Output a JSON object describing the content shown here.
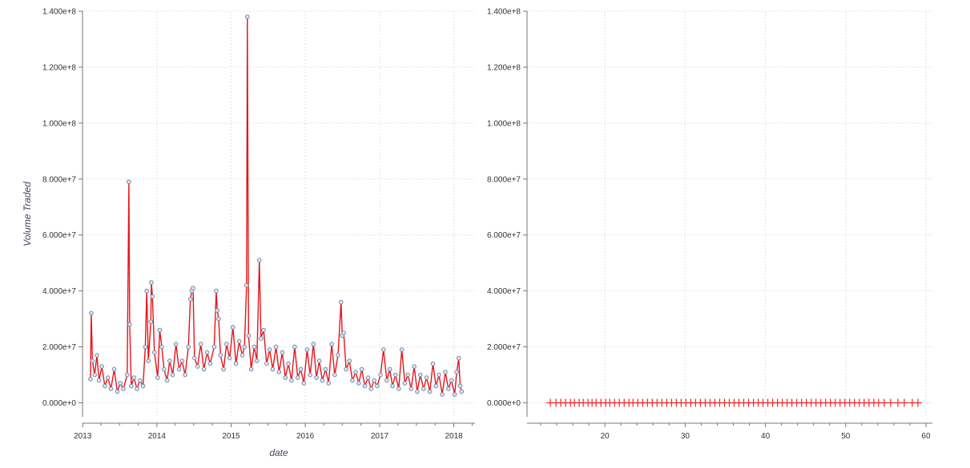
{
  "colors": {
    "line": "#e8141a",
    "marker_fill": "#e0e8f4",
    "marker_stroke": "#6f8aa8",
    "grid": "#e4e4e4",
    "axis": "#777777",
    "cross": "#f02525"
  },
  "chart_data": [
    {
      "type": "line",
      "title": "",
      "xlabel": "date",
      "ylabel": "Volume Traded",
      "x_axis_type": "datetime",
      "xlim": [
        "2012-12-31",
        "2018-04-15"
      ],
      "ylim": [
        -5000000.0,
        140000000.0
      ],
      "grid": true,
      "x_ticks": [
        "2013",
        "2014",
        "2015",
        "2016",
        "2017",
        "2018"
      ],
      "y_ticks": [
        "0.000e+0",
        "2.000e+7",
        "4.000e+7",
        "6.000e+7",
        "8.000e+7",
        "1.000e+8",
        "1.200e+8",
        "1.400e+8"
      ],
      "y_tick_values": [
        0,
        20000000,
        40000000,
        60000000,
        80000000,
        100000000,
        120000000,
        140000000
      ],
      "markers": "circle",
      "series": [
        {
          "points": [
            [
              "2013-02-08",
              8500000
            ],
            [
              "2013-02-12",
              32000000
            ],
            [
              "2013-02-18",
              15000000
            ],
            [
              "2013-03-01",
              10000000
            ],
            [
              "2013-03-12",
              17000000
            ],
            [
              "2013-03-22",
              8000000
            ],
            [
              "2013-04-05",
              13000000
            ],
            [
              "2013-04-20",
              6000000
            ],
            [
              "2013-05-05",
              9000000
            ],
            [
              "2013-05-20",
              5000000
            ],
            [
              "2013-06-05",
              12000000
            ],
            [
              "2013-06-20",
              4000000
            ],
            [
              "2013-07-05",
              7000000
            ],
            [
              "2013-07-20",
              5000000
            ],
            [
              "2013-08-08",
              10000000
            ],
            [
              "2013-08-16",
              79000000
            ],
            [
              "2013-08-20",
              28000000
            ],
            [
              "2013-08-28",
              6000000
            ],
            [
              "2013-09-10",
              9000000
            ],
            [
              "2013-09-25",
              5000000
            ],
            [
              "2013-10-10",
              8000000
            ],
            [
              "2013-10-25",
              6000000
            ],
            [
              "2013-11-05",
              20000000
            ],
            [
              "2013-11-12",
              40000000
            ],
            [
              "2013-11-20",
              15000000
            ],
            [
              "2013-12-02",
              29000000
            ],
            [
              "2013-12-05",
              43000000
            ],
            [
              "2013-12-10",
              38000000
            ],
            [
              "2013-12-20",
              18000000
            ],
            [
              "2014-01-05",
              9000000
            ],
            [
              "2014-01-15",
              26000000
            ],
            [
              "2014-01-25",
              20000000
            ],
            [
              "2014-02-05",
              12000000
            ],
            [
              "2014-02-20",
              8000000
            ],
            [
              "2014-03-05",
              15000000
            ],
            [
              "2014-03-20",
              10000000
            ],
            [
              "2014-04-05",
              21000000
            ],
            [
              "2014-04-20",
              12000000
            ],
            [
              "2014-05-05",
              15000000
            ],
            [
              "2014-05-20",
              10000000
            ],
            [
              "2014-06-05",
              20000000
            ],
            [
              "2014-06-15",
              37000000
            ],
            [
              "2014-06-22",
              40000000
            ],
            [
              "2014-06-28",
              41000000
            ],
            [
              "2014-07-05",
              16000000
            ],
            [
              "2014-07-20",
              13000000
            ],
            [
              "2014-08-05",
              21000000
            ],
            [
              "2014-08-20",
              12000000
            ],
            [
              "2014-09-05",
              18000000
            ],
            [
              "2014-09-20",
              14000000
            ],
            [
              "2014-10-10",
              20000000
            ],
            [
              "2014-10-20",
              40000000
            ],
            [
              "2014-10-25",
              33000000
            ],
            [
              "2014-11-01",
              30000000
            ],
            [
              "2014-11-10",
              17000000
            ],
            [
              "2014-11-25",
              12000000
            ],
            [
              "2014-12-10",
              21000000
            ],
            [
              "2014-12-25",
              16000000
            ],
            [
              "2015-01-10",
              27000000
            ],
            [
              "2015-01-25",
              14000000
            ],
            [
              "2015-02-10",
              22000000
            ],
            [
              "2015-02-25",
              17000000
            ],
            [
              "2015-03-08",
              20000000
            ],
            [
              "2015-03-18",
              42000000
            ],
            [
              "2015-03-22",
              138000000
            ],
            [
              "2015-03-28",
              24000000
            ],
            [
              "2015-04-10",
              12000000
            ],
            [
              "2015-04-25",
              20000000
            ],
            [
              "2015-05-08",
              15000000
            ],
            [
              "2015-05-20",
              51000000
            ],
            [
              "2015-05-28",
              23000000
            ],
            [
              "2015-06-10",
              26000000
            ],
            [
              "2015-06-25",
              14000000
            ],
            [
              "2015-07-10",
              19000000
            ],
            [
              "2015-07-25",
              12000000
            ],
            [
              "2015-08-10",
              20000000
            ],
            [
              "2015-08-25",
              11000000
            ],
            [
              "2015-09-10",
              18000000
            ],
            [
              "2015-09-25",
              9000000
            ],
            [
              "2015-10-10",
              14000000
            ],
            [
              "2015-10-25",
              8000000
            ],
            [
              "2015-11-10",
              20000000
            ],
            [
              "2015-11-25",
              9000000
            ],
            [
              "2015-12-10",
              12000000
            ],
            [
              "2015-12-25",
              7000000
            ],
            [
              "2016-01-10",
              19000000
            ],
            [
              "2016-01-25",
              10000000
            ],
            [
              "2016-02-10",
              21000000
            ],
            [
              "2016-02-25",
              9000000
            ],
            [
              "2016-03-10",
              15000000
            ],
            [
              "2016-03-25",
              8000000
            ],
            [
              "2016-04-10",
              12000000
            ],
            [
              "2016-04-25",
              7000000
            ],
            [
              "2016-05-10",
              21000000
            ],
            [
              "2016-05-25",
              10000000
            ],
            [
              "2016-06-10",
              17000000
            ],
            [
              "2016-06-25",
              36000000
            ],
            [
              "2016-07-01",
              24000000
            ],
            [
              "2016-07-08",
              25000000
            ],
            [
              "2016-07-20",
              12000000
            ],
            [
              "2016-08-05",
              15000000
            ],
            [
              "2016-08-20",
              8000000
            ],
            [
              "2016-09-05",
              11000000
            ],
            [
              "2016-09-20",
              7000000
            ],
            [
              "2016-10-05",
              12000000
            ],
            [
              "2016-10-20",
              6000000
            ],
            [
              "2016-11-05",
              9000000
            ],
            [
              "2016-11-20",
              5000000
            ],
            [
              "2016-12-05",
              8000000
            ],
            [
              "2016-12-20",
              6000000
            ],
            [
              "2017-01-05",
              10000000
            ],
            [
              "2017-01-20",
              19000000
            ],
            [
              "2017-02-05",
              8000000
            ],
            [
              "2017-02-20",
              12000000
            ],
            [
              "2017-03-05",
              6000000
            ],
            [
              "2017-03-20",
              10000000
            ],
            [
              "2017-04-05",
              5000000
            ],
            [
              "2017-04-20",
              19000000
            ],
            [
              "2017-05-05",
              7000000
            ],
            [
              "2017-05-20",
              10000000
            ],
            [
              "2017-06-05",
              5000000
            ],
            [
              "2017-06-20",
              13000000
            ],
            [
              "2017-07-05",
              4000000
            ],
            [
              "2017-07-20",
              10000000
            ],
            [
              "2017-08-05",
              5000000
            ],
            [
              "2017-08-20",
              9000000
            ],
            [
              "2017-09-05",
              4000000
            ],
            [
              "2017-09-20",
              14000000
            ],
            [
              "2017-10-05",
              6000000
            ],
            [
              "2017-10-20",
              10000000
            ],
            [
              "2017-11-05",
              3000000
            ],
            [
              "2017-11-20",
              11000000
            ],
            [
              "2017-12-05",
              5000000
            ],
            [
              "2017-12-20",
              8000000
            ],
            [
              "2018-01-05",
              3000000
            ],
            [
              "2018-01-15",
              11000000
            ],
            [
              "2018-01-25",
              16000000
            ],
            [
              "2018-02-01",
              6000000
            ],
            [
              "2018-02-08",
              4000000
            ]
          ]
        }
      ]
    },
    {
      "type": "scatter",
      "title": "",
      "xlabel": "",
      "ylabel": "",
      "xlim": [
        10.3,
        60.8
      ],
      "ylim": [
        -5000000.0,
        140000000.0
      ],
      "grid": true,
      "x_ticks": [
        "20",
        "30",
        "40",
        "50",
        "60"
      ],
      "x_tick_values": [
        20,
        30,
        40,
        50,
        60
      ],
      "y_ticks": [
        "0.000e+0",
        "2.000e+7",
        "4.000e+7",
        "6.000e+7",
        "8.000e+7",
        "1.000e+8",
        "1.200e+8",
        "1.400e+8"
      ],
      "y_tick_values": [
        0,
        20000000,
        40000000,
        60000000,
        80000000,
        100000000,
        120000000,
        140000000
      ],
      "markers": "cross",
      "series": [
        {
          "y": 0,
          "x": [
            13.2,
            13.9,
            14.5,
            15.1,
            15.7,
            16.2,
            16.8,
            17.3,
            17.9,
            18.4,
            18.9,
            19.5,
            20.1,
            20.6,
            21.2,
            21.8,
            22.4,
            23.0,
            23.5,
            24.1,
            24.7,
            25.3,
            25.9,
            26.5,
            27.1,
            27.7,
            28.3,
            28.9,
            29.5,
            30.1,
            30.7,
            31.3,
            31.9,
            32.5,
            33.1,
            33.7,
            34.3,
            34.9,
            35.5,
            36.1,
            36.7,
            37.3,
            37.9,
            38.5,
            39.1,
            39.7,
            40.3,
            40.9,
            41.5,
            42.1,
            42.7,
            43.3,
            43.9,
            44.5,
            45.1,
            45.7,
            46.3,
            46.9,
            47.5,
            48.1,
            48.7,
            49.3,
            49.9,
            50.5,
            51.1,
            51.7,
            52.3,
            52.9,
            53.5,
            54.1,
            54.8,
            55.6,
            56.5,
            57.3,
            58.3,
            59.0
          ]
        }
      ]
    }
  ]
}
